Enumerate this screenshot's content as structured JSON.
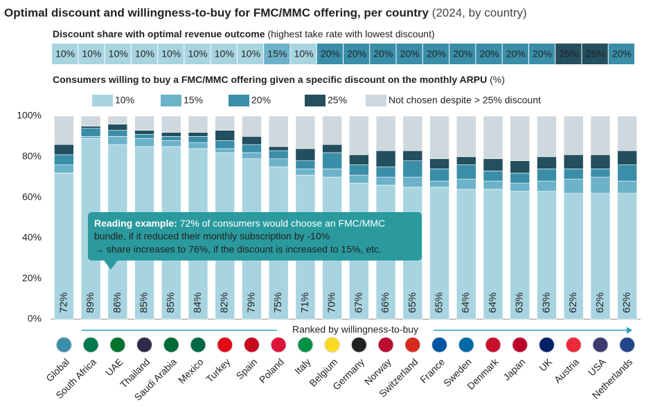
{
  "chart_data": {
    "type": "stacked_bar",
    "title": "Optimal discount  and willingness-to-buy for FMC/MMC offering, per country",
    "title_note": "(2024, by country)",
    "strip": {
      "title": "Discount share with optimal revenue outcome",
      "note": "(highest take rate with lowest discount)",
      "values": [
        10,
        10,
        10,
        10,
        10,
        10,
        10,
        10,
        15,
        10,
        20,
        20,
        20,
        20,
        20,
        20,
        20,
        20,
        20,
        25,
        25,
        20
      ],
      "value_labels": [
        "10%",
        "10%",
        "10%",
        "10%",
        "10%",
        "10%",
        "10%",
        "10%",
        "15%",
        "10%",
        "20%",
        "20%",
        "20%",
        "20%",
        "20%",
        "20%",
        "20%",
        "20%",
        "20%",
        "25%",
        "25%",
        "20%"
      ]
    },
    "subtitle": "Consumers willing to buy a FMC/MMC offering given a specific discount on the monthly ARPU",
    "subtitle_note": "(%)",
    "categories": [
      "Global",
      "South Africa",
      "UAE",
      "Thailand",
      "Saudi Arabia",
      "Mexico",
      "Turkey",
      "Spain",
      "Poland",
      "Italy",
      "Belgium",
      "Germany",
      "Norway",
      "Switzerland",
      "France",
      "Sweden",
      "Denmark",
      "Japan",
      "UK",
      "Austria",
      "USA",
      "Netherlands"
    ],
    "series": [
      {
        "name": "10%",
        "color": "#a8d4e0",
        "values": [
          72,
          89,
          86,
          85,
          85,
          84,
          82,
          79,
          75,
          71,
          70,
          67,
          66,
          65,
          65,
          64,
          64,
          63,
          63,
          62,
          62,
          62
        ],
        "value_labels": [
          "72%",
          "89%",
          "86%",
          "85%",
          "85%",
          "84%",
          "82%",
          "79%",
          "75%",
          "71%",
          "70%",
          "67%",
          "66%",
          "65%",
          "65%",
          "64%",
          "64%",
          "63%",
          "63%",
          "62%",
          "62%",
          "62%"
        ]
      },
      {
        "name": "15%",
        "color": "#6cb2c9",
        "values": [
          4,
          1,
          4,
          4,
          3,
          3,
          2,
          3,
          4,
          3,
          4,
          4,
          4,
          5,
          3,
          5,
          4,
          4,
          5,
          7,
          8,
          6
        ]
      },
      {
        "name": "20%",
        "color": "#3a8ea8",
        "values": [
          5,
          4,
          3,
          2,
          2,
          3,
          4,
          4,
          4,
          4,
          8,
          5,
          5,
          8,
          6,
          7,
          5,
          5,
          6,
          5,
          4,
          8
        ]
      },
      {
        "name": "25%",
        "color": "#234f5e",
        "values": [
          5,
          1,
          3,
          2,
          2,
          2,
          5,
          4,
          2,
          6,
          4,
          5,
          8,
          5,
          5,
          4,
          6,
          6,
          6,
          7,
          7,
          7
        ]
      },
      {
        "name": "Not chosen despite > 25% discount",
        "color": "#cfd8de",
        "values": [
          14,
          5,
          4,
          7,
          8,
          8,
          7,
          10,
          15,
          16,
          14,
          19,
          17,
          17,
          21,
          20,
          21,
          22,
          20,
          19,
          19,
          17
        ]
      }
    ],
    "ylim": [
      0,
      100
    ],
    "yticks": [
      {
        "value": 0,
        "label": "0%"
      },
      {
        "value": 20,
        "label": "20%"
      },
      {
        "value": 40,
        "label": "40%"
      },
      {
        "value": 60,
        "label": "60%"
      },
      {
        "value": 80,
        "label": "80%"
      },
      {
        "value": 100,
        "label": "100%"
      }
    ],
    "annotation": {
      "lead": "Reading example:",
      "lines": [
        " 72% of consumers would choose an FMC/MMC",
        "bundle, if it reduced their monthly subscription by -10%",
        "→ share increases to 76%, if the discount is increased to 15%, etc."
      ]
    },
    "ranking_label": "Ranked by willingness-to-buy"
  }
}
